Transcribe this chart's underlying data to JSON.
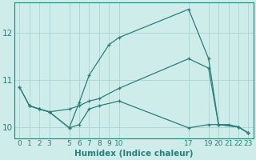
{
  "xlabel": "Humidex (Indice chaleur)",
  "background_color": "#ceecea",
  "grid_color": "#aed8d4",
  "line_color": "#2a7f7a",
  "xlim": [
    -0.5,
    23.5
  ],
  "ylim": [
    9.75,
    12.65
  ],
  "xticks": [
    0,
    1,
    2,
    3,
    5,
    6,
    7,
    8,
    9,
    10,
    17,
    19,
    20,
    21,
    22,
    23
  ],
  "yticks": [
    10,
    11,
    12
  ],
  "lines": [
    {
      "x": [
        0,
        1,
        2,
        3,
        5,
        6,
        7,
        9,
        10,
        17,
        19,
        20,
        21,
        22,
        23
      ],
      "y": [
        10.85,
        10.45,
        10.38,
        10.32,
        9.98,
        10.52,
        11.1,
        11.75,
        11.9,
        12.5,
        11.45,
        10.05,
        10.05,
        10.0,
        9.87
      ]
    },
    {
      "x": [
        0,
        1,
        2,
        3,
        5,
        6,
        7,
        8,
        10,
        17,
        19,
        20,
        22,
        23
      ],
      "y": [
        10.85,
        10.45,
        10.38,
        10.32,
        10.38,
        10.45,
        10.55,
        10.6,
        10.82,
        11.45,
        11.25,
        10.05,
        10.0,
        9.87
      ]
    },
    {
      "x": [
        1,
        2,
        3,
        5,
        6,
        7,
        8,
        10,
        17,
        19,
        20,
        22,
        23
      ],
      "y": [
        10.45,
        10.38,
        10.32,
        9.98,
        10.05,
        10.38,
        10.45,
        10.55,
        9.98,
        10.05,
        10.05,
        10.0,
        9.87
      ]
    }
  ]
}
